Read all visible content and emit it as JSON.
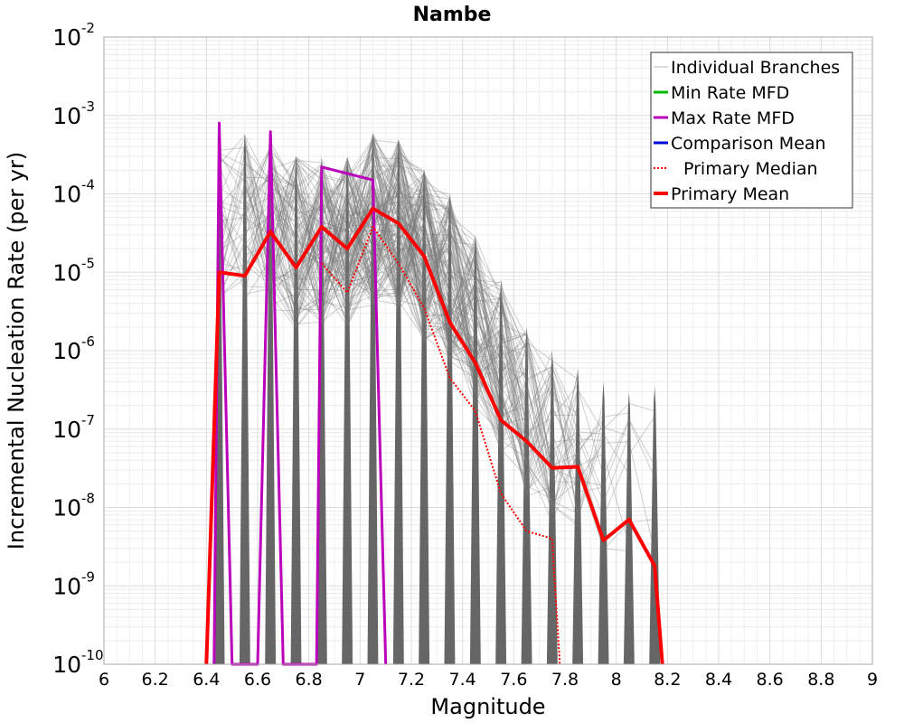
{
  "chart_data": {
    "type": "line",
    "title": "Nambe",
    "xlabel": "Magnitude",
    "ylabel": "Incremental Nucleation Rate (per yr)",
    "xlim": [
      6,
      9
    ],
    "ylim": [
      1e-10,
      0.01
    ],
    "yscale": "log",
    "grid": true,
    "legend_position": "top-right",
    "x_ticks": [
      "6",
      "6.2",
      "6.4",
      "6.6",
      "6.8",
      "7",
      "7.2",
      "7.4",
      "7.6",
      "7.8",
      "8",
      "8.2",
      "8.4",
      "8.6",
      "8.8",
      "9"
    ],
    "y_ticks": [
      {
        "base": "10",
        "exp": "-2"
      },
      {
        "base": "10",
        "exp": "-3"
      },
      {
        "base": "10",
        "exp": "-4"
      },
      {
        "base": "10",
        "exp": "-5"
      },
      {
        "base": "10",
        "exp": "-6"
      },
      {
        "base": "10",
        "exp": "-7"
      },
      {
        "base": "10",
        "exp": "-8"
      },
      {
        "base": "10",
        "exp": "-9"
      },
      {
        "base": "10",
        "exp": "-10"
      }
    ],
    "legend": [
      {
        "name": "Individual Branches",
        "color": "#bbbbbb",
        "style": "solid",
        "width": 1
      },
      {
        "name": "Min Rate MFD",
        "color": "#00bb00",
        "style": "solid",
        "width": 3
      },
      {
        "name": "Max Rate MFD",
        "color": "#bb00bb",
        "style": "solid",
        "width": 3
      },
      {
        "name": "Comparison Mean",
        "color": "#0000dd",
        "style": "solid",
        "width": 3
      },
      {
        "name": "Primary Median",
        "color": "#ff0000",
        "style": "dotted",
        "width": 2
      },
      {
        "name": "Primary Mean",
        "color": "#ff0000",
        "style": "solid",
        "width": 4
      }
    ],
    "series": [
      {
        "name": "Max Rate MFD",
        "color": "#bb00bb",
        "width": 3,
        "style": "solid",
        "x": [
          6.43,
          6.45,
          6.5,
          6.6,
          6.65,
          6.7,
          6.83,
          6.85,
          7.05,
          7.1
        ],
        "y": [
          1e-10,
          0.0008,
          1e-10,
          1e-10,
          0.00062,
          1e-10,
          1e-10,
          0.00022,
          0.00015,
          1e-10
        ]
      },
      {
        "name": "Primary Mean",
        "color": "#ff0000",
        "width": 4,
        "style": "solid",
        "x": [
          6.4,
          6.45,
          6.55,
          6.65,
          6.75,
          6.85,
          6.95,
          7.05,
          7.15,
          7.25,
          7.35,
          7.45,
          7.55,
          7.65,
          7.75,
          7.85,
          7.95,
          8.05,
          8.15,
          8.18
        ],
        "y": [
          1e-10,
          1e-05,
          9e-06,
          3.3e-05,
          1.15e-05,
          3.8e-05,
          2e-05,
          6.5e-05,
          4.2e-05,
          1.6e-05,
          2.3e-06,
          7e-07,
          1.3e-07,
          7e-08,
          3.2e-08,
          3.3e-08,
          3.8e-09,
          7e-09,
          1.8e-09,
          1e-10
        ]
      },
      {
        "name": "Primary Median",
        "color": "#ff0000",
        "width": 2,
        "style": "dotted",
        "x": [
          6.85,
          6.95,
          7.05,
          7.15,
          7.25,
          7.35,
          7.45,
          7.55,
          7.65,
          7.75,
          7.78
        ],
        "y": [
          1.3e-05,
          5.5e-06,
          3.8e-05,
          1.3e-05,
          3.5e-06,
          4.5e-07,
          1.7e-07,
          1.5e-08,
          5e-09,
          4e-09,
          1e-10
        ]
      }
    ],
    "branch_envelope": {
      "name": "Individual Branches",
      "color": "#555555",
      "peaks": [
        {
          "x": 6.45,
          "y": 0.0005
        },
        {
          "x": 6.55,
          "y": 0.0006
        },
        {
          "x": 6.65,
          "y": 0.0005
        },
        {
          "x": 6.75,
          "y": 0.0003
        },
        {
          "x": 6.85,
          "y": 0.0003
        },
        {
          "x": 6.95,
          "y": 0.0003
        },
        {
          "x": 7.05,
          "y": 0.0006
        },
        {
          "x": 7.15,
          "y": 0.0005
        },
        {
          "x": 7.25,
          "y": 0.0002
        },
        {
          "x": 7.35,
          "y": 0.0001
        },
        {
          "x": 7.45,
          "y": 3e-05
        },
        {
          "x": 7.55,
          "y": 8e-06
        },
        {
          "x": 7.65,
          "y": 2e-06
        },
        {
          "x": 7.75,
          "y": 1e-06
        },
        {
          "x": 7.85,
          "y": 6e-07
        },
        {
          "x": 7.95,
          "y": 4e-07
        },
        {
          "x": 8.05,
          "y": 3e-07
        },
        {
          "x": 8.15,
          "y": 3.5e-07
        }
      ]
    }
  }
}
